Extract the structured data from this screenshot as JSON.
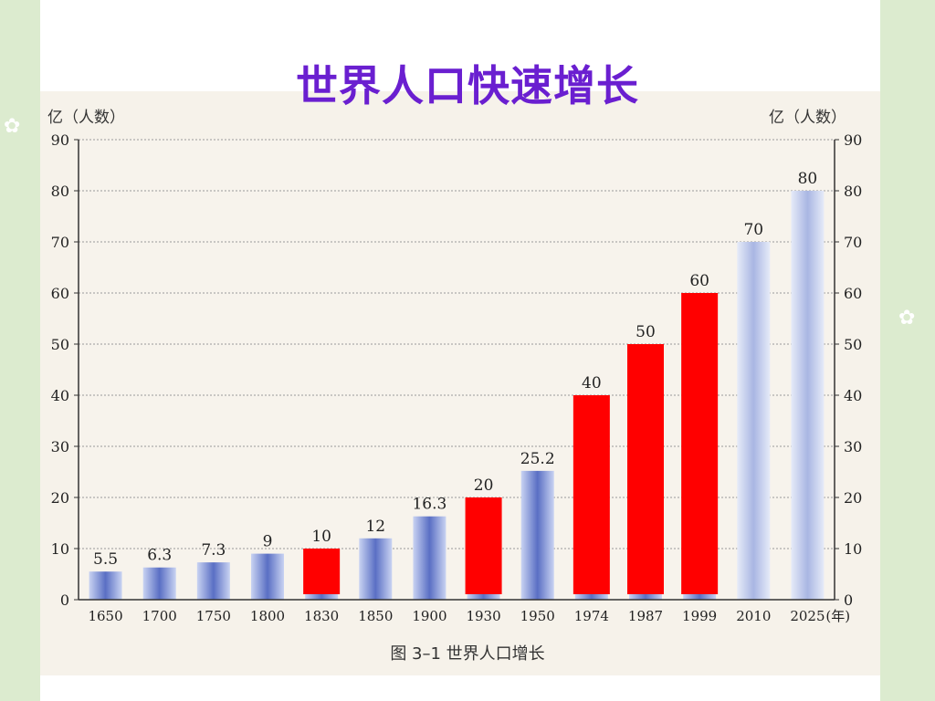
{
  "slide": {
    "title": "世界人口快速增长",
    "caption": "图 3–1 世界人口增长"
  },
  "colors": {
    "title": "#6a1fd0",
    "highlight_bar": "#ff0000",
    "normal_bar": "#7d8fd2",
    "background": "#dcebcf"
  },
  "chart_data": {
    "type": "bar",
    "ylabel_left": "亿（人数）",
    "ylabel_right": "亿（人数）",
    "x_unit": "(年)",
    "ylim": [
      0,
      90
    ],
    "yticks": [
      0,
      10,
      20,
      30,
      40,
      50,
      60,
      70,
      80,
      90
    ],
    "grid": true,
    "categories": [
      "1650",
      "1700",
      "1750",
      "1800",
      "1830",
      "1850",
      "1900",
      "1930",
      "1950",
      "1974",
      "1987",
      "1999",
      "2010",
      "2025"
    ],
    "values": [
      5.5,
      6.3,
      7.3,
      9,
      10,
      12,
      16.3,
      20,
      25.2,
      40,
      50,
      60,
      70,
      80
    ],
    "labels": [
      "5.5",
      "6.3",
      "7.3",
      "9",
      "10",
      "12",
      "16.3",
      "20",
      "25.2",
      "40",
      "50",
      "60",
      "70",
      "80"
    ],
    "highlighted": [
      false,
      false,
      false,
      false,
      true,
      false,
      false,
      true,
      false,
      true,
      true,
      true,
      false,
      false
    ]
  }
}
